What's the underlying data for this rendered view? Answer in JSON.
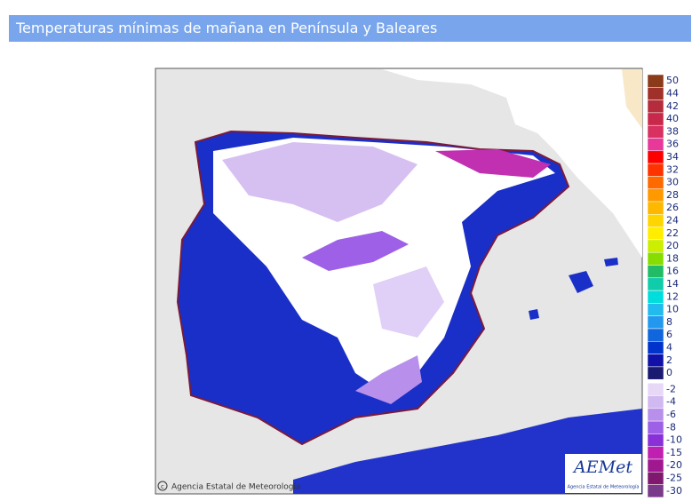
{
  "header": {
    "title": "Temperaturas mínimas de mañana en Península y Baleares"
  },
  "map": {
    "copyright": "Agencia Estatal de Meteorología",
    "logo": {
      "name": "AEMet",
      "subtitle": "Agencia Estatal de Meteorología"
    }
  },
  "legend": [
    {
      "label": "50",
      "color": "#8b3a1a"
    },
    {
      "label": "44",
      "color": "#a0302a"
    },
    {
      "label": "42",
      "color": "#b52c3c"
    },
    {
      "label": "40",
      "color": "#c8284a"
    },
    {
      "label": "38",
      "color": "#d83060"
    },
    {
      "label": "36",
      "color": "#e8389a"
    },
    {
      "label": "34",
      "color": "#ff0000"
    },
    {
      "label": "32",
      "color": "#ff3300"
    },
    {
      "label": "30",
      "color": "#ff6a00"
    },
    {
      "label": "28",
      "color": "#ff9900"
    },
    {
      "label": "26",
      "color": "#ffb800"
    },
    {
      "label": "24",
      "color": "#ffd500"
    },
    {
      "label": "22",
      "color": "#ffee00"
    },
    {
      "label": "20",
      "color": "#ccee00"
    },
    {
      "label": "18",
      "color": "#88dd00"
    },
    {
      "label": "16",
      "color": "#22bb66"
    },
    {
      "label": "14",
      "color": "#11ccaa"
    },
    {
      "label": "12",
      "color": "#00dddd"
    },
    {
      "label": "10",
      "color": "#22bbee"
    },
    {
      "label": "8",
      "color": "#2299ee"
    },
    {
      "label": "6",
      "color": "#1166dd"
    },
    {
      "label": "4",
      "color": "#0033cc"
    },
    {
      "label": "2",
      "color": "#1111aa"
    },
    {
      "label": "0",
      "color": "#1a1a70"
    },
    {
      "label": "-2",
      "color": "#e8d8f8"
    },
    {
      "label": "-4",
      "color": "#d0b8f0"
    },
    {
      "label": "-6",
      "color": "#b890ec"
    },
    {
      "label": "-8",
      "color": "#9d60e6"
    },
    {
      "label": "-10",
      "color": "#8a30d8"
    },
    {
      "label": "-15",
      "color": "#c020b0"
    },
    {
      "label": "-20",
      "color": "#a01890"
    },
    {
      "label": "-25",
      "color": "#801870"
    },
    {
      "label": "-30",
      "color": "#7a3a8a"
    }
  ]
}
